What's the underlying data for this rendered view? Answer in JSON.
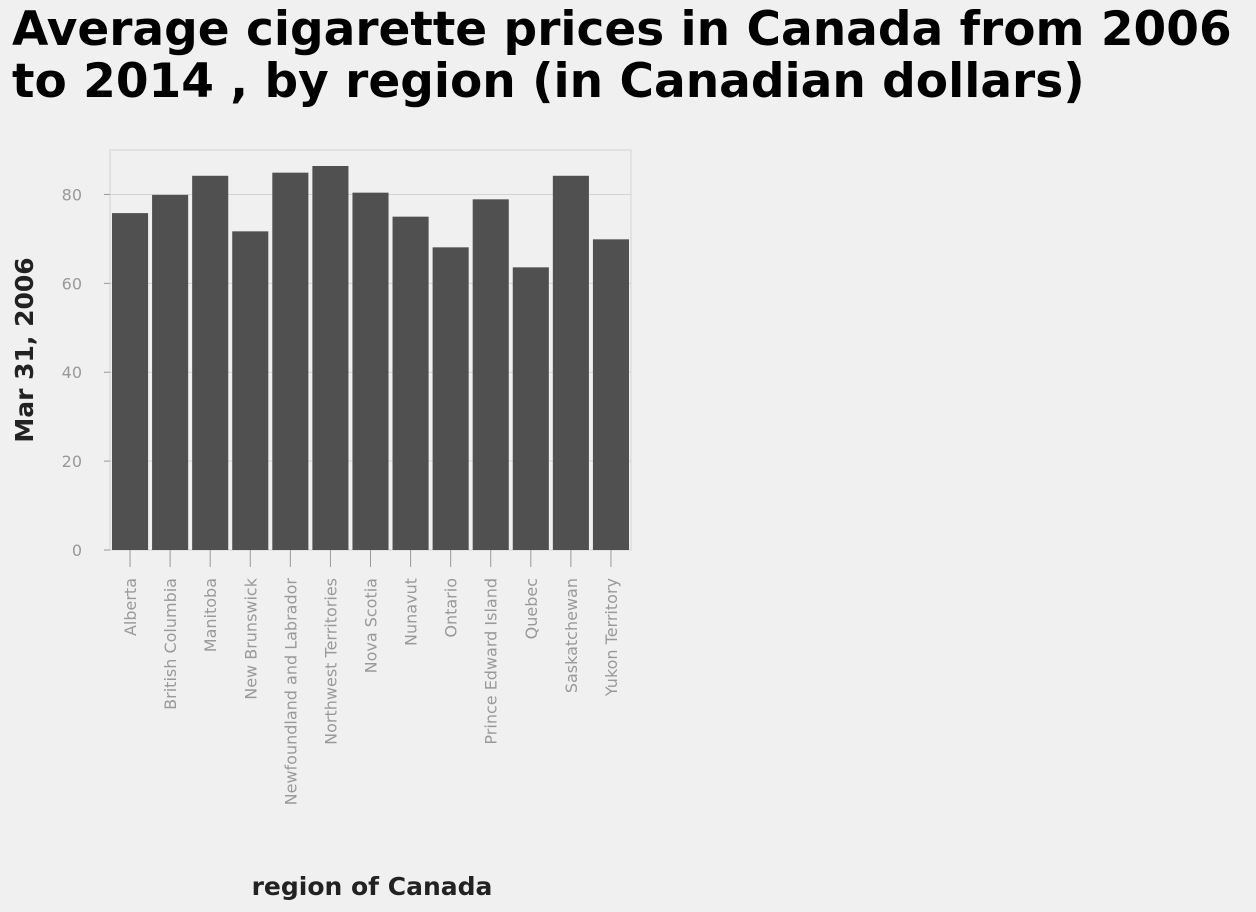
{
  "chart_data": {
    "type": "bar",
    "title": "Average cigarette prices in Canada from 2006 to 2014 , by region (in Canadian dollars)",
    "xlabel": "region of Canada",
    "ylabel": "Mar 31, 2006",
    "categories": [
      "Alberta",
      "British Columbia",
      "Manitoba",
      "New Brunswick",
      "Newfoundland and Labrador",
      "Northwest Territories",
      "Nova Scotia",
      "Nunavut",
      "Ontario",
      "Prince Edward Island",
      "Quebec",
      "Saskatchewan",
      "Yukon Territory"
    ],
    "values": [
      75.8,
      79.9,
      84.2,
      71.7,
      84.9,
      86.4,
      80.4,
      75.0,
      68.1,
      78.9,
      63.6,
      84.2,
      69.9
    ],
    "ylim": [
      0,
      90
    ],
    "yticks": [
      0,
      20,
      40,
      60,
      80
    ],
    "grid": true,
    "colors": {
      "bar": "#505050",
      "background": "#f0f0f0",
      "grid": "#d3d3d3",
      "tick_label": "#999999"
    }
  }
}
